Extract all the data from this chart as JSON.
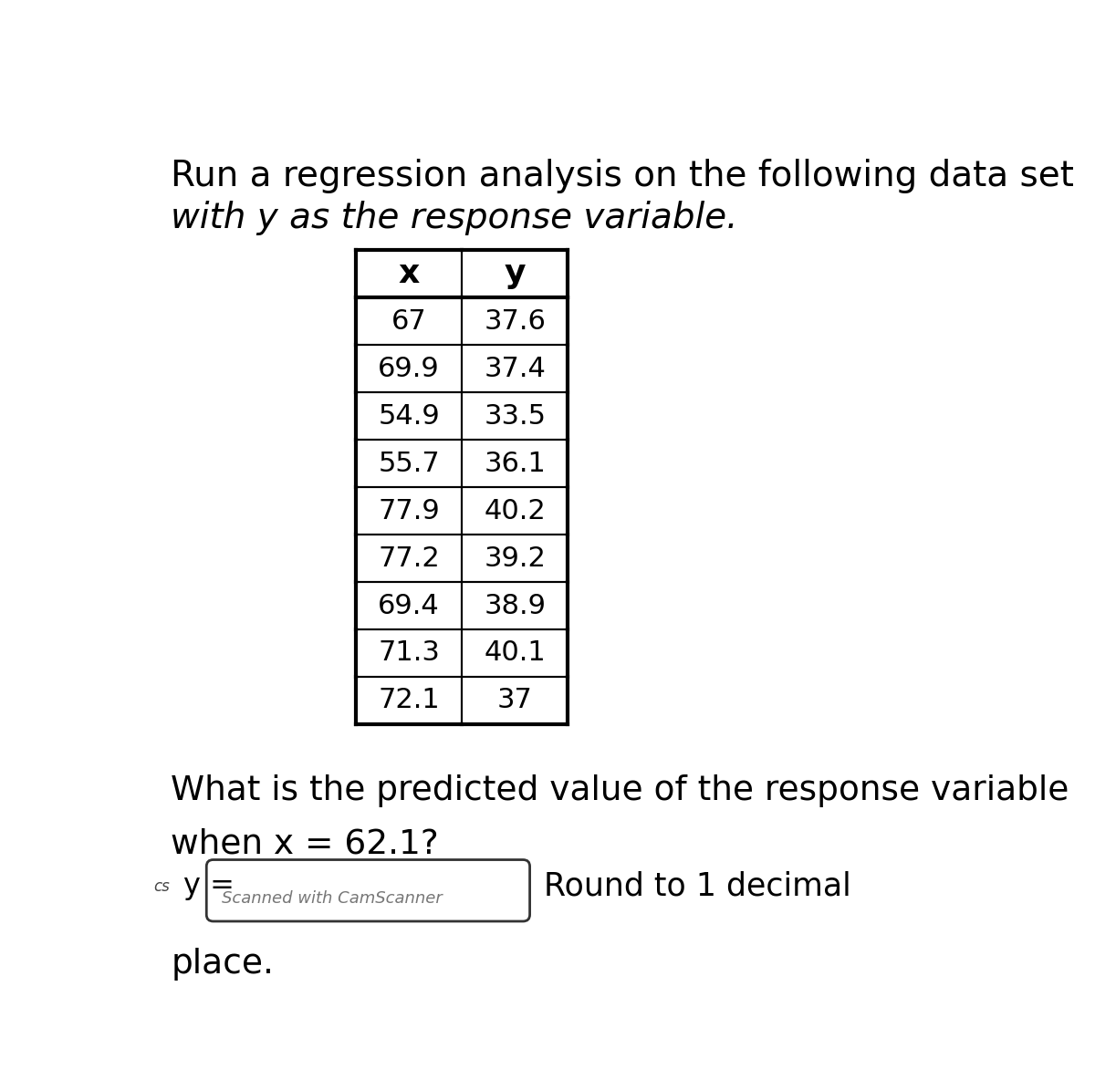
{
  "title_line1": "Run a regression analysis on the following data set",
  "title_line2": "with y as the response variable.",
  "table_headers": [
    "x",
    "y"
  ],
  "table_data": [
    [
      67,
      37.6
    ],
    [
      69.9,
      37.4
    ],
    [
      54.9,
      33.5
    ],
    [
      55.7,
      36.1
    ],
    [
      77.9,
      40.2
    ],
    [
      77.2,
      39.2
    ],
    [
      69.4,
      38.9
    ],
    [
      71.3,
      40.1
    ],
    [
      72.1,
      37
    ]
  ],
  "question_line1": "What is the predicted value of the response variable",
  "question_line2": "when x = 62.1?",
  "cs_label": "cs",
  "y_eq_label": "y =",
  "watermark": "Scanned with CamScanner",
  "round_note": "Round to 1 decimal",
  "round_note2": "place.",
  "bg_color": "#ffffff",
  "table_bg": "#ffffff",
  "border_color": "#000000",
  "text_color": "#000000"
}
